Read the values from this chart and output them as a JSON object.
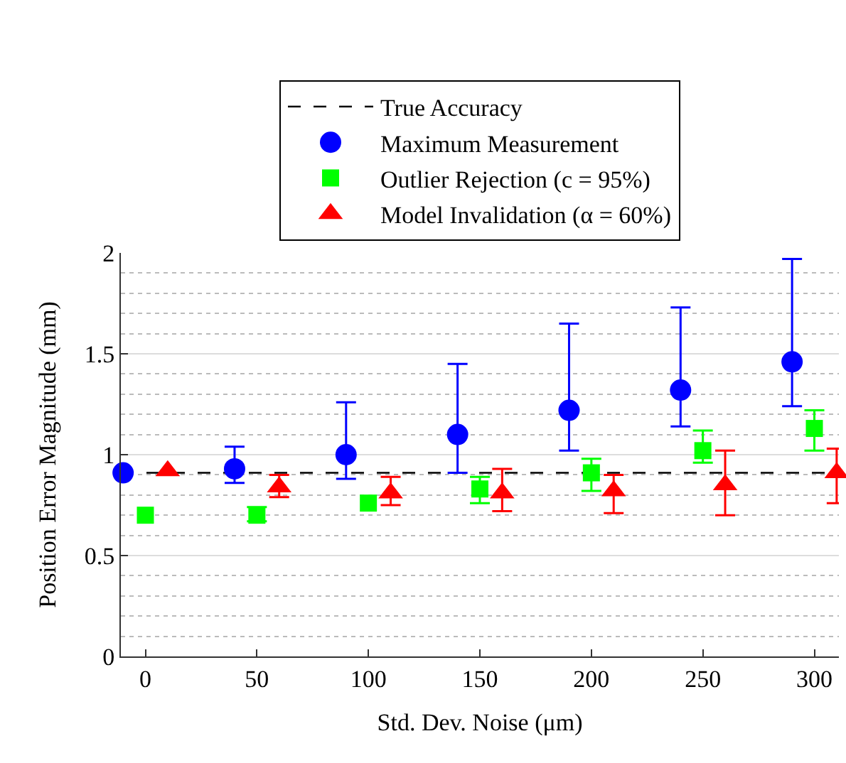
{
  "chart_data": {
    "type": "scatter",
    "xlabel": "Std. Dev. Noise (μm)",
    "ylabel": "Position Error Magnitude (mm)",
    "xlim": [
      -11,
      311
    ],
    "xticks": [
      0,
      50,
      100,
      150,
      200,
      250,
      300
    ],
    "ylim": [
      0,
      2
    ],
    "yticks": [
      0,
      0.5,
      1,
      1.5,
      2
    ],
    "grid": "y",
    "legend": "top",
    "ref_lines": [
      {
        "axis": "y",
        "value": 0.91,
        "label": "True Accuracy",
        "color": "#000000",
        "line_style": "dashed"
      }
    ],
    "series": [
      {
        "name": "Maximum Measurement",
        "color": "#0000ff",
        "marker": "circle",
        "x": [
          -10,
          40,
          90,
          140,
          190,
          240,
          290
        ],
        "values": [
          0.91,
          0.93,
          1.0,
          1.1,
          1.22,
          1.32,
          1.46
        ],
        "errors": [
          null,
          [
            0.86,
            1.04
          ],
          [
            0.88,
            1.26
          ],
          [
            0.91,
            1.45
          ],
          [
            1.02,
            1.65
          ],
          [
            1.14,
            1.73
          ],
          [
            1.24,
            1.97
          ]
        ]
      },
      {
        "name": "Outlier Rejection (c = 95%)",
        "color": "#00ff00",
        "marker": "square",
        "x": [
          0,
          50,
          100,
          150,
          200,
          250,
          300
        ],
        "values": [
          0.7,
          0.7,
          0.76,
          0.83,
          0.91,
          1.02,
          1.13
        ],
        "errors": [
          null,
          [
            0.67,
            0.74
          ],
          null,
          [
            0.76,
            0.89
          ],
          [
            0.82,
            0.98
          ],
          [
            0.96,
            1.12
          ],
          [
            1.02,
            1.22
          ]
        ]
      },
      {
        "name": "Model Invalidation (α = 60%)",
        "color": "#ff0000",
        "marker": "triangle",
        "x": [
          10,
          60,
          110,
          160,
          210,
          260,
          310
        ],
        "values": [
          0.92,
          0.84,
          0.81,
          0.81,
          0.82,
          0.85,
          0.91
        ],
        "errors": [
          null,
          [
            0.79,
            0.9
          ],
          [
            0.75,
            0.89
          ],
          [
            0.72,
            0.93
          ],
          [
            0.71,
            0.9
          ],
          [
            0.7,
            1.02
          ],
          [
            0.76,
            1.03
          ]
        ]
      }
    ]
  }
}
